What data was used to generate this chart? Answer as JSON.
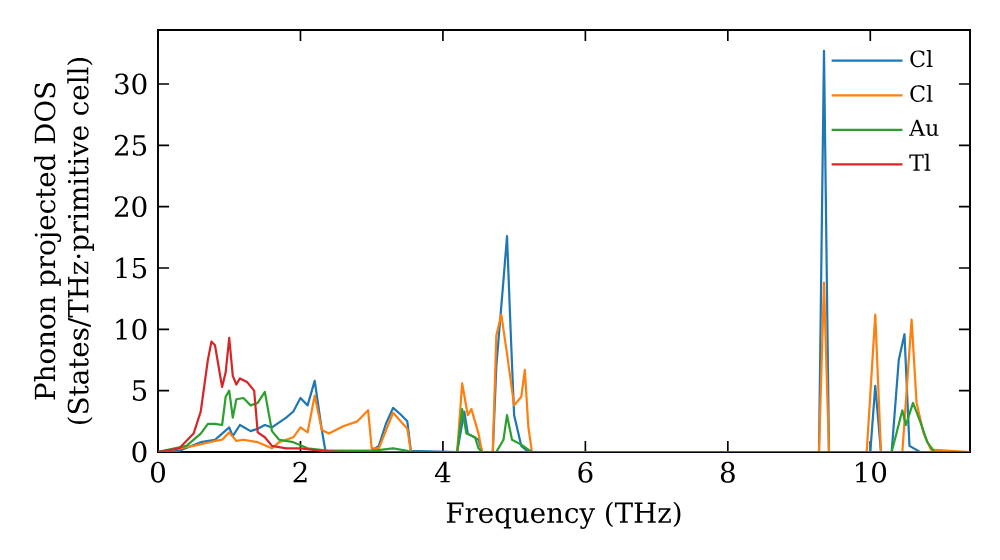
{
  "chart_data": {
    "type": "line",
    "xlabel": "Frequency (THz)",
    "ylabel": "Phonon projected DOS\n(States/THz·primitive cell)",
    "xlim": [
      0,
      11.4
    ],
    "ylim": [
      0,
      34.4
    ],
    "xticks": [
      0,
      2,
      4,
      6,
      8,
      10
    ],
    "yticks": [
      0,
      5,
      10,
      15,
      20,
      25,
      30
    ],
    "grid": false,
    "legend": "top right",
    "marker": "none",
    "line_style": "solid",
    "series": [
      {
        "name": "Cl",
        "color": "#1f77b4",
        "x": [
          0,
          0.3,
          0.6,
          0.8,
          0.9,
          1.0,
          1.05,
          1.15,
          1.3,
          1.4,
          1.5,
          1.6,
          1.8,
          1.9,
          2.0,
          2.1,
          2.2,
          2.3,
          2.35,
          3.0,
          3.1,
          3.2,
          3.3,
          3.4,
          3.5,
          3.55,
          4.2,
          4.3,
          4.35,
          4.5,
          4.55,
          4.7,
          4.75,
          4.85,
          4.9,
          4.95,
          5.0,
          5.1,
          5.2,
          9.28,
          9.35,
          9.42,
          10.0,
          10.07,
          10.15,
          10.3,
          10.4,
          10.48,
          10.55,
          10.7,
          11.4
        ],
        "values": [
          0,
          0.1,
          0.8,
          1.0,
          1.5,
          2.0,
          1.3,
          2.2,
          1.7,
          1.9,
          2.2,
          2.0,
          2.8,
          3.3,
          4.4,
          3.8,
          5.8,
          1.8,
          0.1,
          0.1,
          0.5,
          2.3,
          3.6,
          3.1,
          2.5,
          0.1,
          0,
          3.3,
          1.5,
          1.0,
          0,
          0,
          7,
          14,
          17.6,
          10,
          3,
          0.5,
          0,
          0,
          32.7,
          0,
          0,
          5.4,
          0,
          0,
          7.5,
          9.6,
          0.5,
          0,
          0
        ]
      },
      {
        "name": "Cl",
        "color": "#ff7f0e",
        "x": [
          0,
          0.5,
          0.8,
          0.9,
          1.0,
          1.1,
          1.2,
          1.4,
          1.6,
          1.7,
          1.9,
          2.0,
          2.1,
          2.2,
          2.3,
          2.4,
          2.6,
          2.8,
          2.95,
          3.0,
          3.1,
          3.3,
          3.5,
          3.55,
          4.2,
          4.27,
          4.35,
          4.4,
          4.5,
          4.55,
          4.7,
          4.75,
          4.82,
          4.9,
          5.0,
          5.1,
          5.15,
          5.2,
          5.25,
          9.28,
          9.35,
          9.42,
          9.95,
          10.07,
          10.15,
          10.45,
          10.58,
          10.65,
          10.75,
          10.85,
          11.4
        ],
        "values": [
          0,
          0.5,
          0.9,
          1.0,
          1.6,
          0.9,
          1.0,
          0.8,
          0.3,
          0.8,
          1.2,
          2.0,
          1.6,
          4.6,
          1.8,
          1.5,
          2.1,
          2.5,
          3.4,
          0.3,
          0.3,
          3.2,
          1.9,
          0,
          0,
          5.6,
          3.0,
          3.5,
          1.5,
          0,
          0,
          9.5,
          11.2,
          8,
          3.8,
          4.5,
          6.7,
          2,
          0,
          0,
          13.8,
          0,
          0,
          11.2,
          0,
          0,
          10.8,
          4,
          1.5,
          0.2,
          0
        ]
      },
      {
        "name": "Au",
        "color": "#2ca02c",
        "x": [
          0,
          0.4,
          0.6,
          0.7,
          0.8,
          0.9,
          0.95,
          1.0,
          1.05,
          1.1,
          1.2,
          1.3,
          1.4,
          1.5,
          1.55,
          1.6,
          1.7,
          1.9,
          2.1,
          2.4,
          3.0,
          3.3,
          3.5,
          3.55,
          4.2,
          4.27,
          4.33,
          4.45,
          4.5,
          4.55,
          4.75,
          4.85,
          4.9,
          4.97,
          5.1,
          5.2,
          5.25,
          10.3,
          10.45,
          10.5,
          10.6,
          10.7,
          10.8,
          10.9,
          11.4
        ],
        "values": [
          0,
          0.5,
          1.5,
          2.3,
          2.3,
          2.2,
          4.5,
          5.0,
          2.8,
          4.3,
          4.4,
          3.8,
          4.0,
          4.9,
          3.3,
          1.7,
          1.0,
          0.8,
          0.3,
          0.1,
          0.1,
          0.3,
          0.1,
          0,
          0,
          3.5,
          1.5,
          1.2,
          0.3,
          0,
          0,
          1,
          3.0,
          1.0,
          0.6,
          0.2,
          0,
          0,
          3.4,
          2.2,
          4.0,
          2.5,
          0.8,
          0,
          0
        ]
      },
      {
        "name": "Tl",
        "color": "#d62728",
        "x": [
          0,
          0.3,
          0.5,
          0.6,
          0.7,
          0.75,
          0.8,
          0.9,
          0.95,
          1.0,
          1.05,
          1.1,
          1.15,
          1.25,
          1.35,
          1.4,
          1.5,
          1.6,
          1.8,
          2.0,
          2.3,
          2.6,
          11.4
        ],
        "values": [
          0,
          0.3,
          1.5,
          3.3,
          7.5,
          9.0,
          8.7,
          5.3,
          6.5,
          9.3,
          6.2,
          5.5,
          6.0,
          5.7,
          5.0,
          1.6,
          1.2,
          0.5,
          0.3,
          0.3,
          0.1,
          0,
          0
        ]
      }
    ]
  }
}
